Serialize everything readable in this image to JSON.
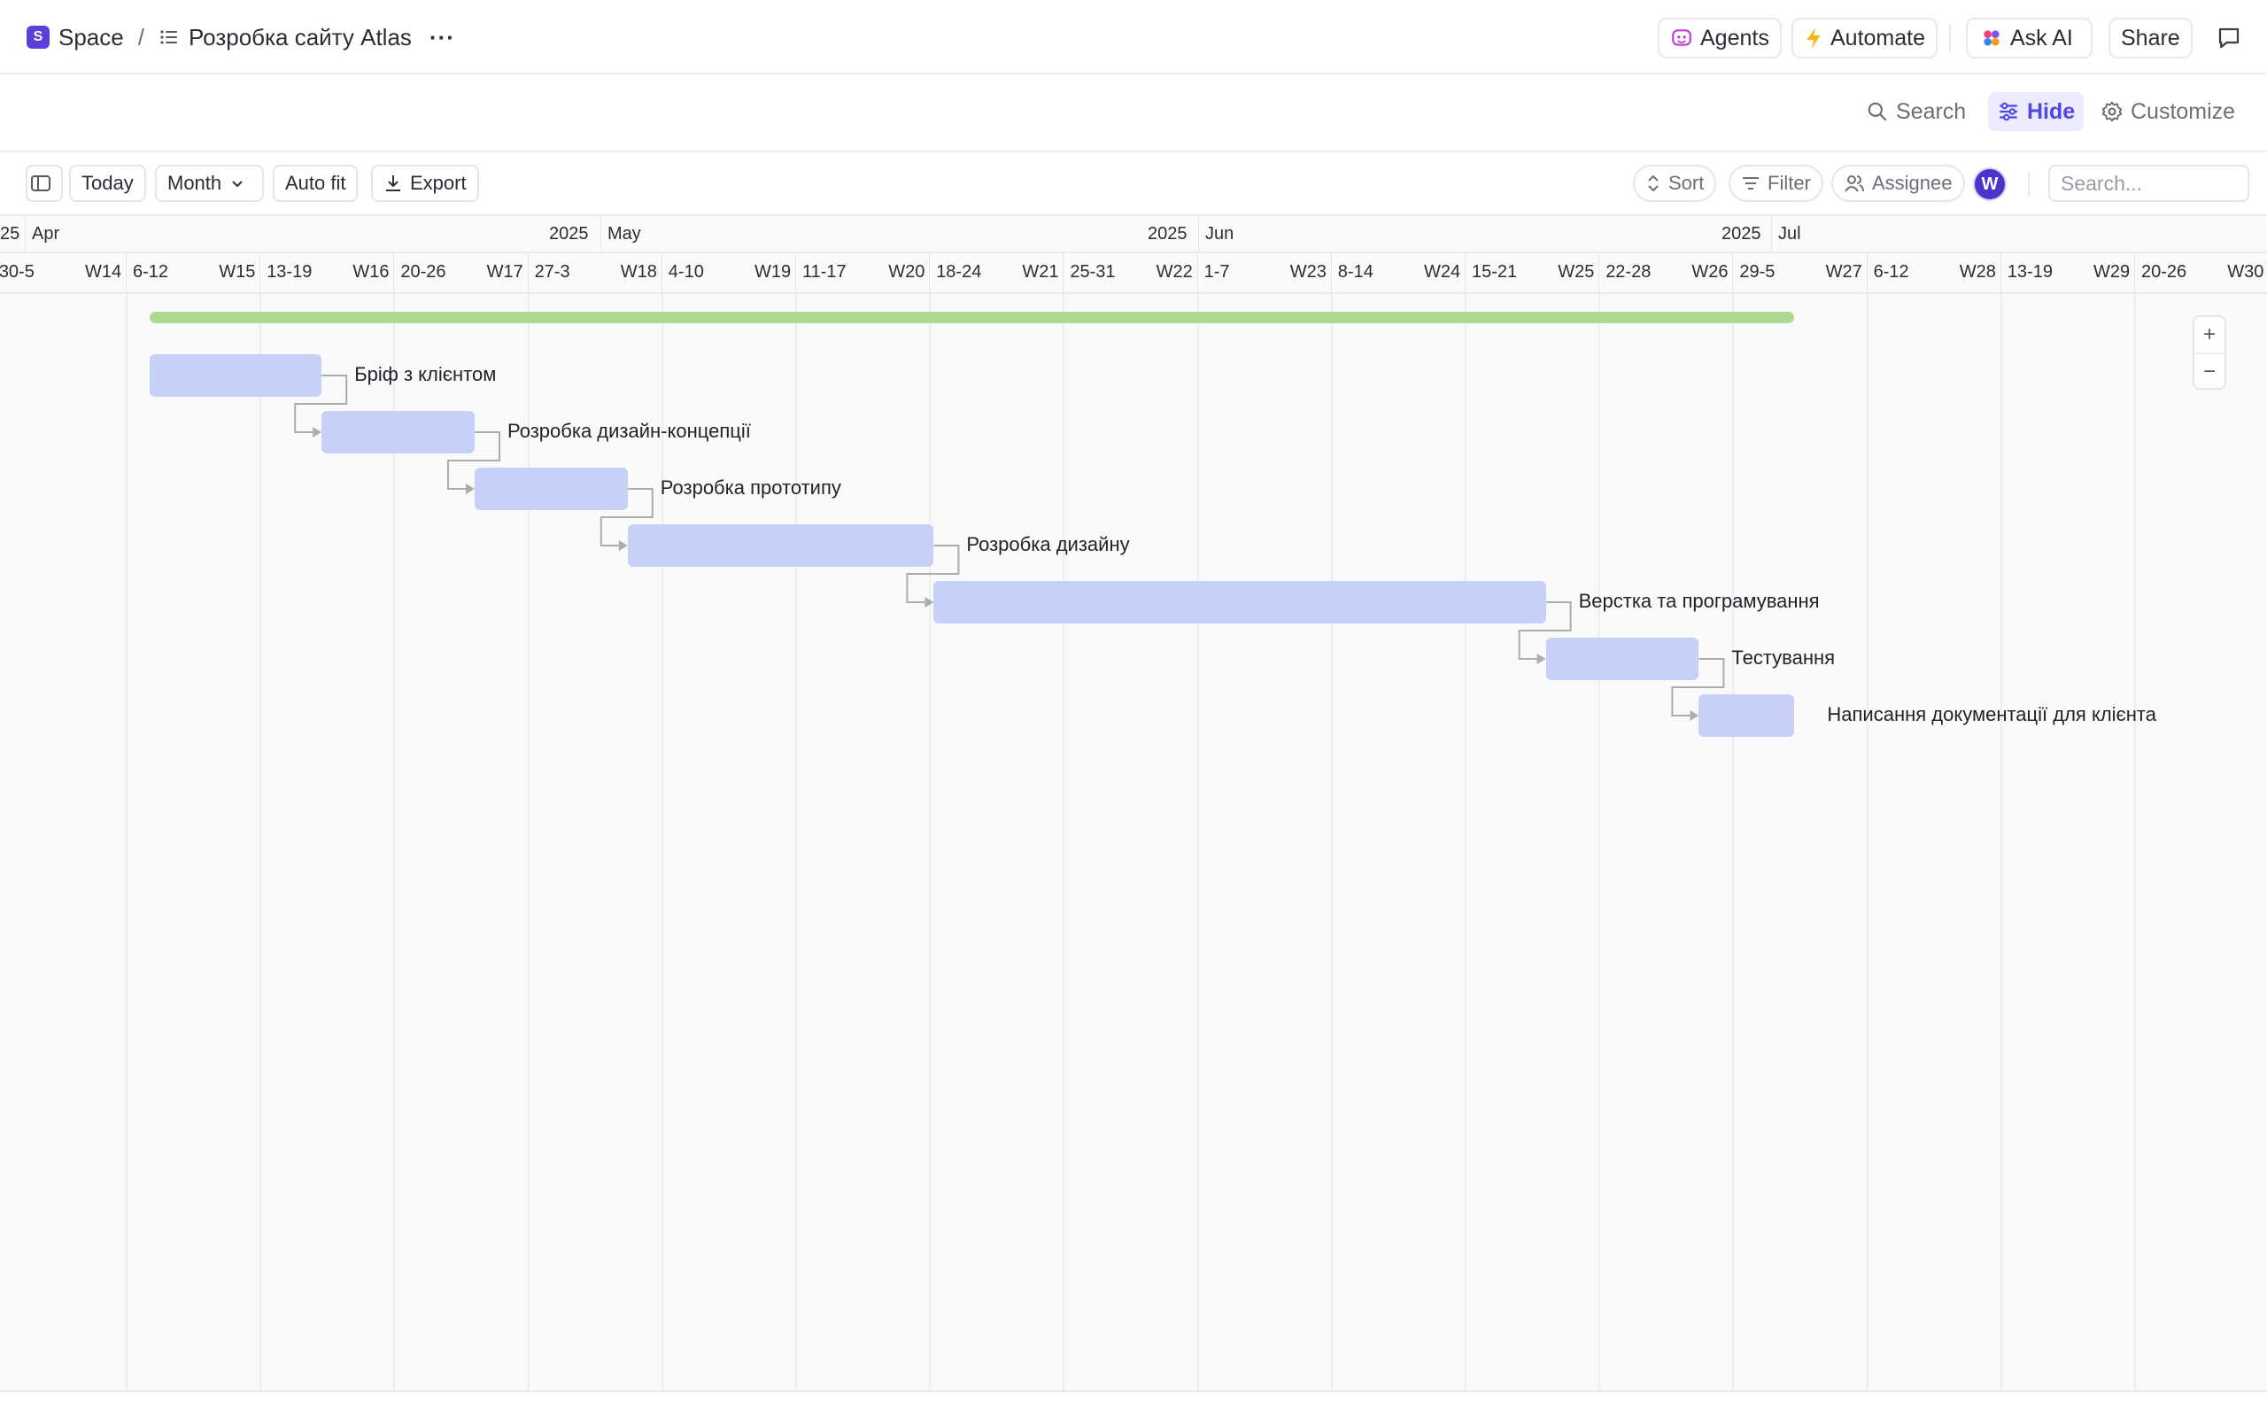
{
  "breadcrumb": {
    "space_badge": "S",
    "space_label": "Space",
    "separator": "/",
    "list_label": "Розробка сайту Atlas",
    "more": "···"
  },
  "topbar": {
    "agents": "Agents",
    "automate": "Automate",
    "ask_ai": "Ask AI",
    "share": "Share"
  },
  "viewbar": {
    "search": "Search",
    "hide": "Hide",
    "customize": "Customize"
  },
  "toolbar": {
    "today": "Today",
    "month": "Month",
    "auto_fit": "Auto fit",
    "export": "Export",
    "sort": "Sort",
    "filter": "Filter",
    "assignee": "Assignee",
    "avatar": "W",
    "search_placeholder": "Search..."
  },
  "timeline": {
    "months": [
      {
        "label": "25"
      },
      {
        "label": "Apr",
        "year": "2025"
      },
      {
        "label": "May",
        "year": "2025"
      },
      {
        "label": "Jun",
        "year": "2025"
      },
      {
        "label": "Jul"
      }
    ],
    "weeks": [
      {
        "range": "30-5",
        "week": "W14"
      },
      {
        "range": "6-12",
        "week": "W15"
      },
      {
        "range": "13-19",
        "week": "W16"
      },
      {
        "range": "20-26",
        "week": "W17"
      },
      {
        "range": "27-3",
        "week": "W18"
      },
      {
        "range": "4-10",
        "week": "W19"
      },
      {
        "range": "11-17",
        "week": "W20"
      },
      {
        "range": "18-24",
        "week": "W21"
      },
      {
        "range": "25-31",
        "week": "W22"
      },
      {
        "range": "1-7",
        "week": "W23"
      },
      {
        "range": "8-14",
        "week": "W24"
      },
      {
        "range": "15-21",
        "week": "W25"
      },
      {
        "range": "22-28",
        "week": "W26"
      },
      {
        "range": "29-5",
        "week": "W27"
      },
      {
        "range": "6-12",
        "week": "W28"
      },
      {
        "range": "13-19",
        "week": "W29"
      },
      {
        "range": "20-26",
        "week": "W30"
      }
    ]
  },
  "tasks": [
    {
      "name": "Бріф з клієнтом",
      "start": "2025-04-07",
      "end": "2025-04-16"
    },
    {
      "name": "Розробка дизайн-концепції",
      "start": "2025-04-16",
      "end": "2025-04-24"
    },
    {
      "name": "Розробка прототипу",
      "start": "2025-04-24",
      "end": "2025-05-02"
    },
    {
      "name": "Розробка дизайну",
      "start": "2025-05-02",
      "end": "2025-05-18"
    },
    {
      "name": "Верстка та програмування",
      "start": "2025-05-18",
      "end": "2025-06-19"
    },
    {
      "name": "Тестування",
      "start": "2025-06-19",
      "end": "2025-06-27"
    },
    {
      "name": "Написання документації для клієнта",
      "start": "2025-06-27",
      "end": "2025-07-02"
    }
  ],
  "zoom": {
    "in": "+",
    "out": "−"
  }
}
